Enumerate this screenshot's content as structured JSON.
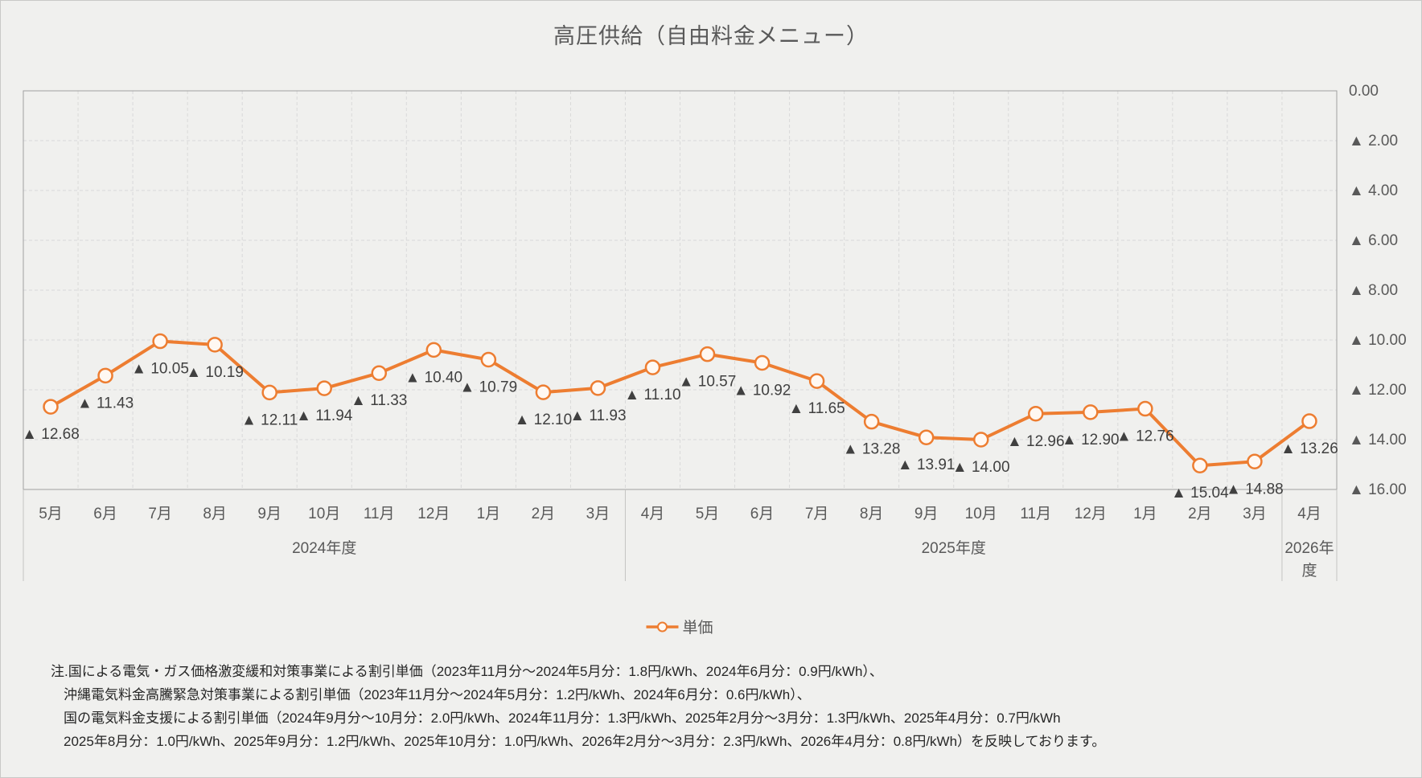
{
  "title": "高圧供給（自由料金メニュー）",
  "legend": {
    "series_label": "単価"
  },
  "colors": {
    "line": "#ED7D31",
    "marker_fill": "#FFF8F2",
    "data_label_text": "#404040",
    "axis_text": "#595959",
    "grid": "#D9D9D9",
    "plot_border": "#A0A0A0",
    "year_separator": "#C4C4C2",
    "background": "#F0F0EE"
  },
  "chart_data": {
    "type": "line",
    "title": "高圧供給（自由料金メニュー）",
    "legend_position": "bottom",
    "grid": true,
    "categories": [
      "5月",
      "6月",
      "7月",
      "8月",
      "9月",
      "10月",
      "11月",
      "12月",
      "1月",
      "2月",
      "3月",
      "4月",
      "5月",
      "6月",
      "7月",
      "8月",
      "9月",
      "10月",
      "11月",
      "12月",
      "1月",
      "2月",
      "3月",
      "4月"
    ],
    "year_groups": [
      {
        "label": "2024年度",
        "span": 11
      },
      {
        "label": "2025年度",
        "span": 12
      },
      {
        "label": "2026年度",
        "span": 1
      }
    ],
    "series": [
      {
        "name": "単価",
        "values": [
          -12.68,
          -11.43,
          -10.05,
          -10.19,
          -12.11,
          -11.94,
          -11.33,
          -10.4,
          -10.79,
          -12.1,
          -11.93,
          -11.1,
          -10.57,
          -10.92,
          -11.65,
          -13.28,
          -13.91,
          -14.0,
          -12.96,
          -12.9,
          -12.76,
          -15.04,
          -14.88,
          -13.26
        ]
      }
    ],
    "data_label_prefix": "▲ ",
    "y_axis": {
      "side": "right",
      "min": -16,
      "max": 0,
      "tick_step": 2,
      "ticks": [
        "0.00",
        "▲ 2.00",
        "▲ 4.00",
        "▲ 6.00",
        "▲ 8.00",
        "▲ 10.00",
        "▲ 12.00",
        "▲ 14.00",
        "▲ 16.00"
      ]
    },
    "unit": "円/kWh"
  },
  "note": {
    "lines": [
      "注.国による電気・ガス価格激変緩和対策事業による割引単価（2023年11月分～2024年5月分：1.8円/kWh、2024年6月分：0.9円/kWh）、",
      "沖縄電気料金高騰緊急対策事業による割引単価（2023年11月分～2024年5月分：1.2円/kWh、2024年6月分：0.6円/kWh）、",
      "国の電気料金支援による割引単価（2024年9月分～10月分：2.0円/kWh、2024年11月分：1.3円/kWh、2025年2月分～3月分：1.3円/kWh、2025年4月分：0.7円/kWh",
      "2025年8月分：1.0円/kWh、2025年9月分：1.2円/kWh、2025年10月分：1.0円/kWh、2026年2月分～3月分：2.3円/kWh、2026年4月分：0.8円/kWh）を反映しております。"
    ]
  }
}
